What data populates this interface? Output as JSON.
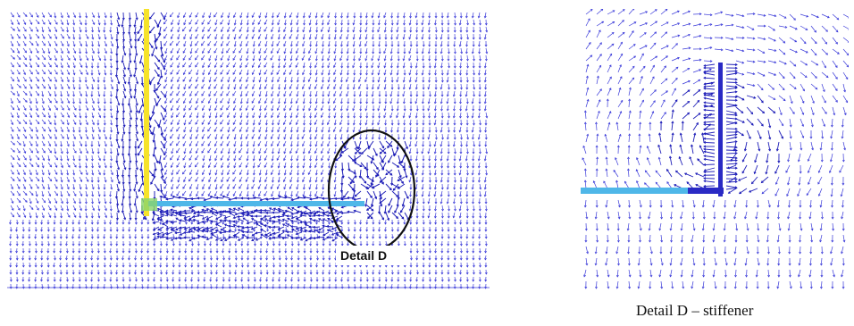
{
  "figure": {
    "main_callout": "Detail D",
    "detail_caption": "Detail D – stiffener"
  },
  "colors": {
    "arrow": "#3b3bd9",
    "arrow_dense": "#1f1fb8",
    "web_line": "#f6e32a",
    "flange_line": "#4fb7e8",
    "corner_glow": "#8ad46b",
    "circle": "#111111"
  }
}
